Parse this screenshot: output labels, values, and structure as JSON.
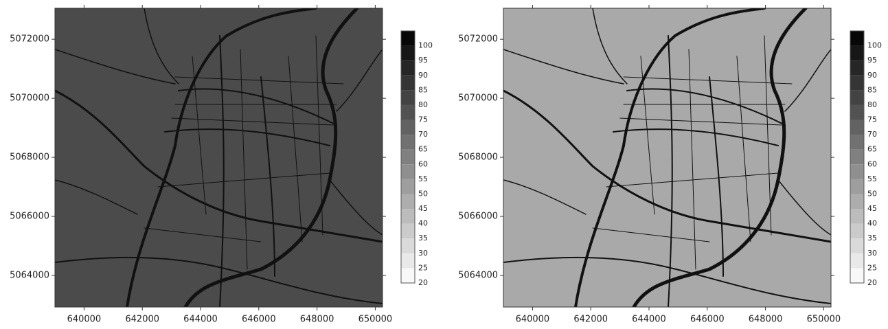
{
  "chart_data": [
    {
      "type": "map",
      "fill_color": "#4b4b4b",
      "xlim": [
        639000,
        650250
      ],
      "ylim": [
        5062930,
        5073050
      ],
      "xticks": [
        640000,
        642000,
        644000,
        646000,
        648000,
        650000
      ],
      "yticks": [
        5064000,
        5066000,
        5068000,
        5070000,
        5072000
      ],
      "colorbar": {
        "zlim": [
          20,
          105
        ],
        "ticks": [
          20,
          25,
          30,
          35,
          40,
          45,
          50,
          55,
          60,
          65,
          70,
          75,
          80,
          85,
          90,
          95,
          100
        ]
      }
    },
    {
      "type": "map",
      "fill_color": "#a9a9a9",
      "xlim": [
        639000,
        650250
      ],
      "ylim": [
        5062930,
        5073050
      ],
      "xticks": [
        640000,
        642000,
        644000,
        646000,
        648000,
        650000
      ],
      "yticks": [
        5064000,
        5066000,
        5068000,
        5070000,
        5072000
      ],
      "colorbar": {
        "zlim": [
          20,
          105
        ],
        "ticks": [
          20,
          25,
          30,
          35,
          40,
          45,
          50,
          55,
          60,
          65,
          70,
          75,
          80,
          85,
          90,
          95,
          100
        ]
      }
    }
  ]
}
